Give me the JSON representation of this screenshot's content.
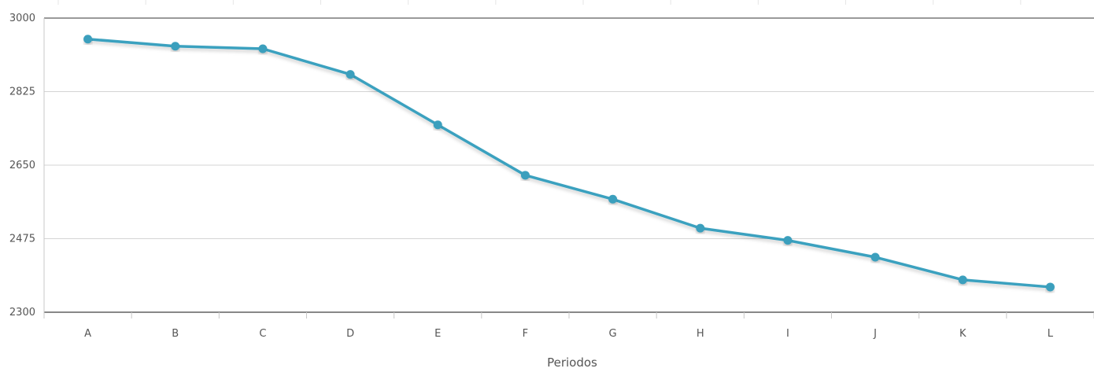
{
  "chart_data": {
    "type": "line",
    "title": "",
    "xlabel": "Periodos",
    "ylabel": "",
    "categories": [
      "A",
      "B",
      "C",
      "D",
      "E",
      "F",
      "G",
      "H",
      "I",
      "J",
      "K",
      "L"
    ],
    "series": [
      {
        "values": [
          2950,
          2933,
          2927,
          2866,
          2746,
          2626,
          2569,
          2500,
          2471,
          2431,
          2377,
          2360
        ]
      }
    ],
    "ylim": [
      2300,
      3000
    ],
    "yticks": [
      2300,
      2475,
      2650,
      2825,
      3000
    ],
    "grid": true,
    "legend": "none",
    "colors": {
      "line": "#3ba1bf",
      "marker": "#3a9fbd",
      "grid": "#d4d4d4",
      "axis": "#888888",
      "text": "#555555"
    }
  }
}
